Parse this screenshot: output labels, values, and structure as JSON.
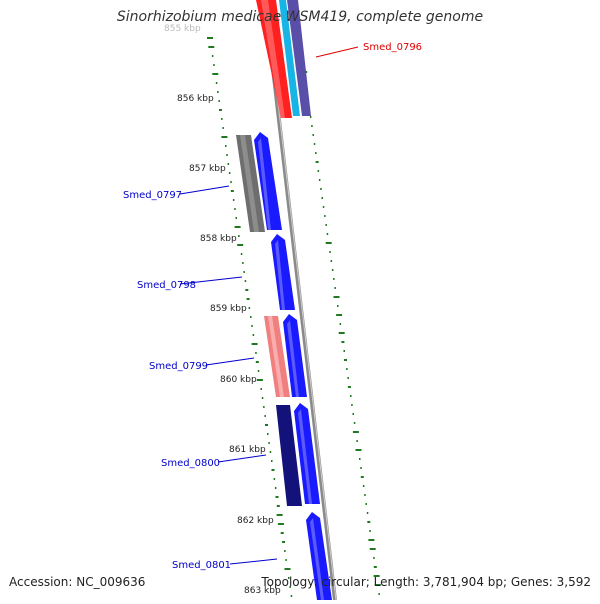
{
  "title": "Sinorhizobium medicae WSM419, complete genome",
  "footer": {
    "accession": "Accession: NC_009636",
    "topology": "Topology: circular; Length: 3,781,904 bp; Genes: 3,592"
  },
  "colors": {
    "backbone": "#8a8a8a",
    "gc_skew": "#1f7a1f",
    "highlight_label": "#e00000",
    "gene_label": "#0000cc"
  },
  "kbp_ticks": [
    "855 kbp",
    "856 kbp",
    "857 kbp",
    "858 kbp",
    "859 kbp",
    "860 kbp",
    "861 kbp",
    "862 kbp",
    "863 kbp"
  ],
  "gene_labels": [
    {
      "name": "Smed_0796",
      "color": "#e00000"
    },
    {
      "name": "Smed_0797",
      "color": "#0000cc"
    },
    {
      "name": "Smed_0798",
      "color": "#0000cc"
    },
    {
      "name": "Smed_0799",
      "color": "#0000cc"
    },
    {
      "name": "Smed_0800",
      "color": "#0000cc"
    },
    {
      "name": "Smed_0801",
      "color": "#0000cc"
    }
  ]
}
